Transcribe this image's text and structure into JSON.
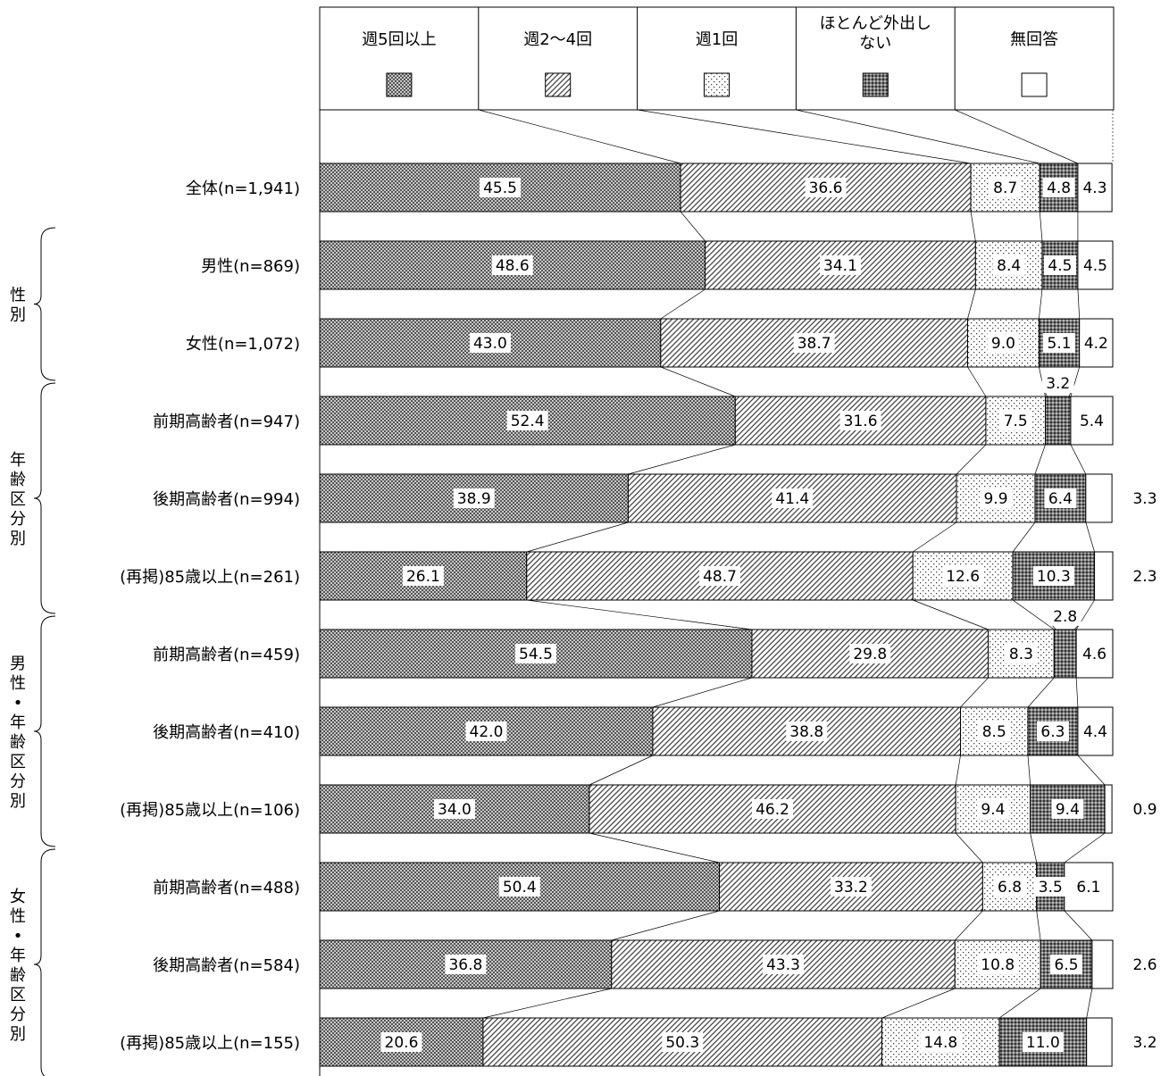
{
  "chart_data": {
    "type": "bar",
    "stacked": "100%",
    "orientation": "horizontal",
    "legend": {
      "placement": "top",
      "items": [
        {
          "label": "週5回以上"
        },
        {
          "label": "週2～4回"
        },
        {
          "label": "週1回"
        },
        {
          "label": "ほとんど外出しない",
          "label_lines": [
            "ほとんど外出し",
            "ない"
          ]
        },
        {
          "label": "無回答"
        }
      ]
    },
    "categories": [
      "全体(n=1,941)",
      "男性(n=869)",
      "女性(n=1,072)",
      "前期高齢者(n=947)",
      "後期高齢者(n=994)",
      "(再掲)85歳以上(n=261)",
      "前期高齢者(n=459)",
      "後期高齢者(n=410)",
      "(再掲)85歳以上(n=106)",
      "前期高齢者(n=488)",
      "後期高齢者(n=584)",
      "(再掲)85歳以上(n=155)"
    ],
    "series": [
      {
        "name": "週5回以上",
        "values": [
          45.5,
          48.6,
          43.0,
          52.4,
          38.9,
          26.1,
          54.5,
          42.0,
          34.0,
          50.4,
          36.8,
          20.6
        ]
      },
      {
        "name": "週2～4回",
        "values": [
          36.6,
          34.1,
          38.7,
          31.6,
          41.4,
          48.7,
          29.8,
          38.8,
          46.2,
          33.2,
          43.3,
          50.3
        ]
      },
      {
        "name": "週1回",
        "values": [
          8.7,
          8.4,
          9.0,
          7.5,
          9.9,
          12.6,
          8.3,
          8.5,
          9.4,
          6.8,
          10.8,
          14.8
        ]
      },
      {
        "name": "ほとんど外出しない",
        "values": [
          4.8,
          4.5,
          5.1,
          3.2,
          6.4,
          10.3,
          2.8,
          6.3,
          9.4,
          3.5,
          6.5,
          11.0
        ]
      },
      {
        "name": "無回答",
        "values": [
          4.3,
          4.5,
          4.2,
          5.4,
          3.3,
          2.3,
          4.6,
          4.4,
          0.9,
          6.1,
          2.6,
          3.2
        ]
      }
    ],
    "groups": [
      {
        "label": "性別",
        "rows": [
          1,
          2
        ]
      },
      {
        "label": "年齢区分別",
        "rows": [
          3,
          4,
          5
        ]
      },
      {
        "label": "男性・年齢区分別",
        "rows": [
          6,
          7,
          8
        ]
      },
      {
        "label": "女性・年齢区分別",
        "rows": [
          9,
          10,
          11
        ]
      }
    ],
    "xlim": [
      0,
      100
    ],
    "grid": false,
    "colors": {
      "fill_dark": "#8a8a8a",
      "stroke": "#000000",
      "background": "#ffffff"
    }
  }
}
